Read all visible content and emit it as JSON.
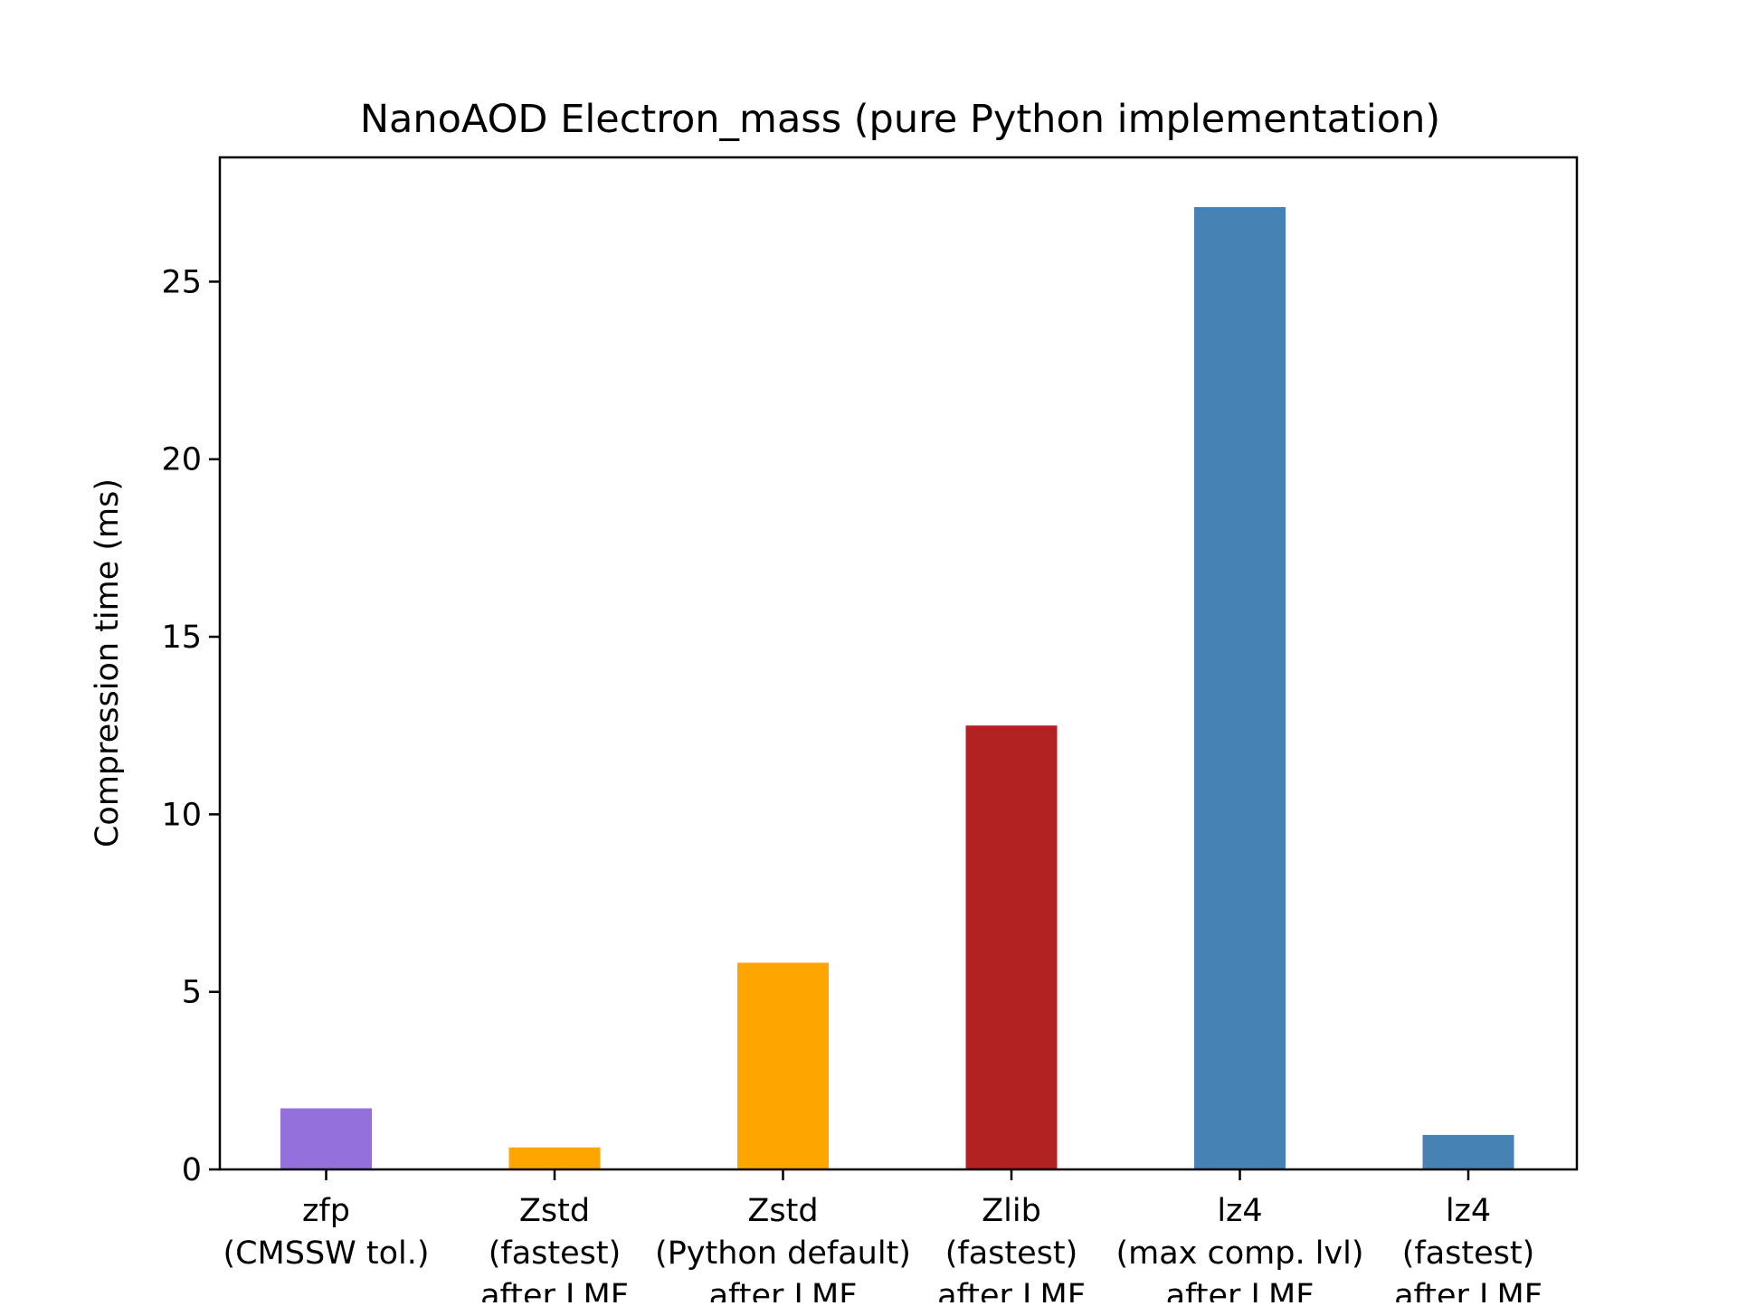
{
  "chart_data": {
    "type": "bar",
    "title": "NanoAOD Electron_mass (pure Python implementation)",
    "xlabel": "",
    "ylabel": "Compression time (ms)",
    "ylim": [
      0,
      28.5
    ],
    "yticks": [
      0,
      5,
      10,
      15,
      20,
      25
    ],
    "grid": false,
    "legend": "none",
    "categories": [
      [
        "zfp",
        "(CMSSW tol.)"
      ],
      [
        "Zstd",
        "(fastest)",
        "after LMF"
      ],
      [
        "Zstd",
        "(Python default)",
        "after LMF"
      ],
      [
        "Zlib",
        "(fastest)",
        "after LMF"
      ],
      [
        "lz4",
        "(max comp. lvl)",
        "after LMF"
      ],
      [
        "lz4",
        "(fastest)",
        "after LMF"
      ]
    ],
    "values": [
      1.72,
      0.62,
      5.82,
      12.5,
      27.1,
      0.97
    ],
    "colors": [
      "#9370db",
      "#ffa500",
      "#ffa500",
      "#b22222",
      "#4682b4",
      "#4682b4"
    ]
  }
}
